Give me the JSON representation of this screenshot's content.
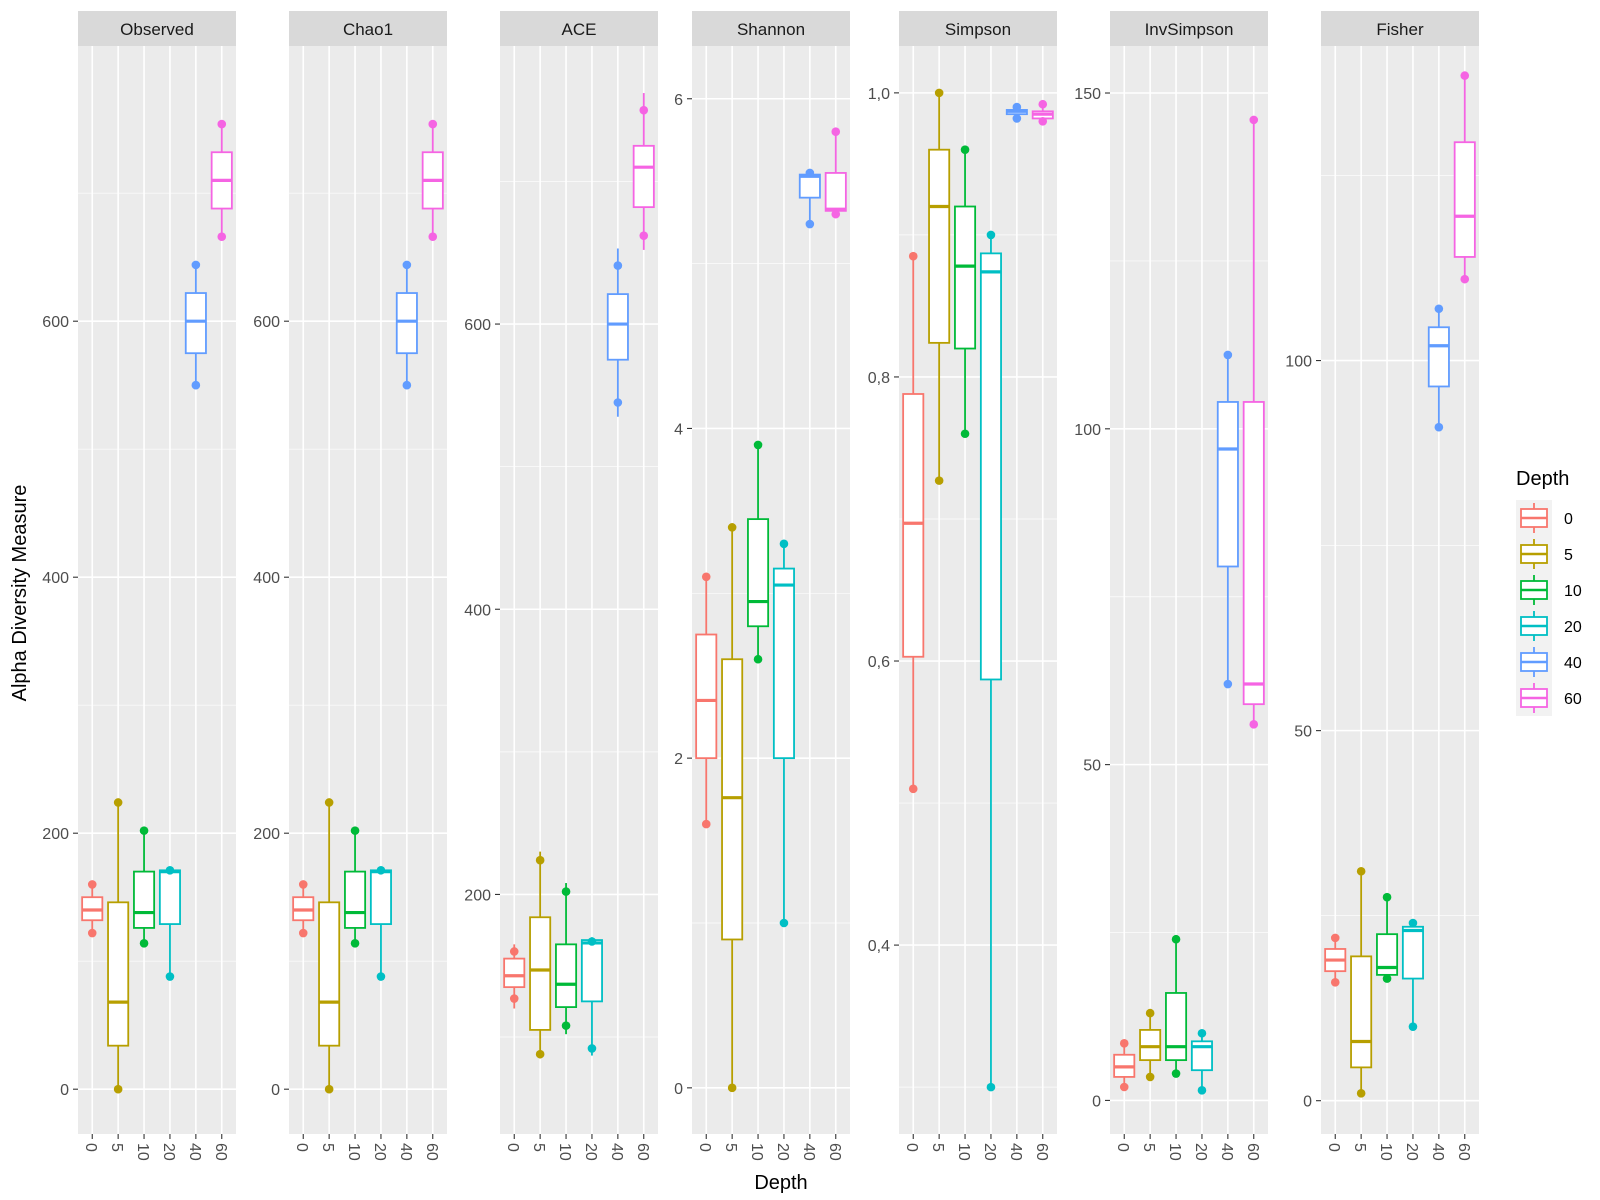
{
  "chart_data": {
    "type": "box",
    "xlabel": "Depth",
    "ylabel": "Alpha Diversity Measure",
    "legend": {
      "title": "Depth",
      "position": "right",
      "entries": [
        "0",
        "5",
        "10",
        "20",
        "40",
        "60"
      ]
    },
    "categories": [
      "0",
      "5",
      "10",
      "20",
      "40",
      "60"
    ],
    "colors": [
      "#F8766D",
      "#B79F00",
      "#00BA38",
      "#00BFC4",
      "#619CFF",
      "#F564E3"
    ],
    "panel_background": "#EBEBEB",
    "strip_background": "#D9D9D9",
    "grid": true,
    "panels": [
      {
        "title": "Observed",
        "ylim": [
          -35,
          815
        ],
        "yticks": [
          0,
          200,
          400,
          600
        ],
        "ytick_labels": [
          "0",
          "200",
          "400",
          "600"
        ],
        "boxes": [
          {
            "depth": "0",
            "whisker_low": 122,
            "q1": 132,
            "median": 140,
            "q3": 150,
            "whisker_high": 160,
            "points": [
              122,
              160
            ]
          },
          {
            "depth": "5",
            "whisker_low": 0,
            "q1": 34,
            "median": 68,
            "q3": 146,
            "whisker_high": 224,
            "points": [
              0,
              224
            ]
          },
          {
            "depth": "10",
            "whisker_low": 114,
            "q1": 126,
            "median": 138,
            "q3": 170,
            "whisker_high": 202,
            "points": [
              114,
              202
            ]
          },
          {
            "depth": "20",
            "whisker_low": 88,
            "q1": 129,
            "median": 170,
            "q3": 171,
            "whisker_high": 172,
            "points": [
              88,
              171
            ]
          },
          {
            "depth": "40",
            "whisker_low": 550,
            "q1": 575,
            "median": 600,
            "q3": 622,
            "whisker_high": 644,
            "points": [
              550,
              644
            ]
          },
          {
            "depth": "60",
            "whisker_low": 666,
            "q1": 688,
            "median": 710,
            "q3": 732,
            "whisker_high": 754,
            "points": [
              666,
              754
            ]
          }
        ]
      },
      {
        "title": "Chao1",
        "ylim": [
          -35,
          815
        ],
        "yticks": [
          0,
          200,
          400,
          600
        ],
        "ytick_labels": [
          "0",
          "200",
          "400",
          "600"
        ],
        "boxes": [
          {
            "depth": "0",
            "whisker_low": 122,
            "q1": 132,
            "median": 140,
            "q3": 150,
            "whisker_high": 160,
            "points": [
              122,
              160
            ]
          },
          {
            "depth": "5",
            "whisker_low": 0,
            "q1": 34,
            "median": 68,
            "q3": 146,
            "whisker_high": 224,
            "points": [
              0,
              224
            ]
          },
          {
            "depth": "10",
            "whisker_low": 114,
            "q1": 126,
            "median": 138,
            "q3": 170,
            "whisker_high": 202,
            "points": [
              114,
              202
            ]
          },
          {
            "depth": "20",
            "whisker_low": 88,
            "q1": 129,
            "median": 170,
            "q3": 171,
            "whisker_high": 172,
            "points": [
              88,
              171
            ]
          },
          {
            "depth": "40",
            "whisker_low": 550,
            "q1": 575,
            "median": 600,
            "q3": 622,
            "whisker_high": 644,
            "points": [
              550,
              644
            ]
          },
          {
            "depth": "60",
            "whisker_low": 666,
            "q1": 688,
            "median": 710,
            "q3": 732,
            "whisker_high": 754,
            "points": [
              666,
              754
            ]
          }
        ]
      },
      {
        "title": "ACE",
        "ylim": [
          32,
          795
        ],
        "yticks": [
          200,
          400,
          600
        ],
        "ytick_labels": [
          "200",
          "400",
          "600"
        ],
        "boxes": [
          {
            "depth": "0",
            "whisker_low": 120,
            "q1": 135,
            "median": 143,
            "q3": 155,
            "whisker_high": 165,
            "points": [
              127,
              160
            ]
          },
          {
            "depth": "5",
            "whisker_low": 85,
            "q1": 105,
            "median": 147,
            "q3": 184,
            "whisker_high": 230,
            "points": [
              88,
              224
            ]
          },
          {
            "depth": "10",
            "whisker_low": 102,
            "q1": 121,
            "median": 137,
            "q3": 165,
            "whisker_high": 208,
            "points": [
              108,
              202
            ]
          },
          {
            "depth": "20",
            "whisker_low": 87,
            "q1": 125,
            "median": 166,
            "q3": 168,
            "whisker_high": 170,
            "points": [
              92,
              167
            ]
          },
          {
            "depth": "40",
            "whisker_low": 535,
            "q1": 575,
            "median": 600,
            "q3": 621,
            "whisker_high": 653,
            "points": [
              545,
              641
            ]
          },
          {
            "depth": "60",
            "whisker_low": 652,
            "q1": 682,
            "median": 710,
            "q3": 725,
            "whisker_high": 762,
            "points": [
              662,
              750
            ]
          }
        ]
      },
      {
        "title": "Shannon",
        "ylim": [
          -0.28,
          6.32
        ],
        "yticks": [
          0,
          2,
          4,
          6
        ],
        "ytick_labels": [
          "0",
          "2",
          "4",
          "6"
        ],
        "boxes": [
          {
            "depth": "0",
            "whisker_low": 1.6,
            "q1": 2.0,
            "median": 2.35,
            "q3": 2.75,
            "whisker_high": 3.1,
            "points": [
              1.6,
              3.1
            ]
          },
          {
            "depth": "5",
            "whisker_low": 0,
            "q1": 0.9,
            "median": 1.76,
            "q3": 2.6,
            "whisker_high": 3.4,
            "points": [
              0,
              3.4
            ]
          },
          {
            "depth": "10",
            "whisker_low": 2.6,
            "q1": 2.8,
            "median": 2.95,
            "q3": 3.45,
            "whisker_high": 3.9,
            "points": [
              2.6,
              3.9
            ]
          },
          {
            "depth": "20",
            "whisker_low": 1.0,
            "q1": 2.0,
            "median": 3.05,
            "q3": 3.15,
            "whisker_high": 3.3,
            "points": [
              1.0,
              3.3
            ]
          },
          {
            "depth": "40",
            "whisker_low": 5.24,
            "q1": 5.4,
            "median": 5.53,
            "q3": 5.54,
            "whisker_high": 5.55,
            "points": [
              5.24,
              5.55
            ]
          },
          {
            "depth": "60",
            "whisker_low": 5.3,
            "q1": 5.32,
            "median": 5.33,
            "q3": 5.55,
            "whisker_high": 5.8,
            "points": [
              5.3,
              5.8
            ]
          }
        ]
      },
      {
        "title": "Simpson",
        "ylim": [
          0.267,
          1.033
        ],
        "yticks": [
          0.4,
          0.6,
          0.8,
          1.0
        ],
        "ytick_labels": [
          "0,4",
          "0,6",
          "0,8",
          "1,0"
        ],
        "boxes": [
          {
            "depth": "0",
            "whisker_low": 0.51,
            "q1": 0.603,
            "median": 0.697,
            "q3": 0.788,
            "whisker_high": 0.885,
            "points": [
              0.51,
              0.885
            ]
          },
          {
            "depth": "5",
            "whisker_low": 0.727,
            "q1": 0.824,
            "median": 0.92,
            "q3": 0.96,
            "whisker_high": 1.0,
            "points": [
              0.727,
              1.0
            ]
          },
          {
            "depth": "10",
            "whisker_low": 0.76,
            "q1": 0.82,
            "median": 0.878,
            "q3": 0.92,
            "whisker_high": 0.96,
            "points": [
              0.76,
              0.96
            ]
          },
          {
            "depth": "20",
            "whisker_low": 0.3,
            "q1": 0.587,
            "median": 0.874,
            "q3": 0.887,
            "whisker_high": 0.9,
            "points": [
              0.3,
              0.9
            ]
          },
          {
            "depth": "40",
            "whisker_low": 0.982,
            "q1": 0.985,
            "median": 0.987,
            "q3": 0.988,
            "whisker_high": 0.99,
            "points": [
              0.982,
              0.99
            ]
          },
          {
            "depth": "60",
            "whisker_low": 0.98,
            "q1": 0.982,
            "median": 0.985,
            "q3": 0.987,
            "whisker_high": 0.992,
            "points": [
              0.98,
              0.992
            ]
          }
        ]
      },
      {
        "title": "InvSimpson",
        "ylim": [
          -5,
          157
        ],
        "yticks": [
          0,
          50,
          100,
          150
        ],
        "ytick_labels": [
          "0",
          "50",
          "100",
          "150"
        ],
        "boxes": [
          {
            "depth": "0",
            "whisker_low": 2,
            "q1": 3.5,
            "median": 5,
            "q3": 6.8,
            "whisker_high": 8.5,
            "points": [
              2,
              8.5
            ]
          },
          {
            "depth": "5",
            "whisker_low": 3.5,
            "q1": 6,
            "median": 8,
            "q3": 10.5,
            "whisker_high": 13,
            "points": [
              3.5,
              13
            ]
          },
          {
            "depth": "10",
            "whisker_low": 4,
            "q1": 6,
            "median": 8,
            "q3": 16,
            "whisker_high": 24,
            "points": [
              4,
              24
            ]
          },
          {
            "depth": "20",
            "whisker_low": 1.5,
            "q1": 4.5,
            "median": 8,
            "q3": 8.8,
            "whisker_high": 10,
            "points": [
              1.5,
              10
            ]
          },
          {
            "depth": "40",
            "whisker_low": 62,
            "q1": 79.5,
            "median": 97,
            "q3": 104,
            "whisker_high": 111,
            "points": [
              62,
              111
            ]
          },
          {
            "depth": "60",
            "whisker_low": 56,
            "q1": 59,
            "median": 62,
            "q3": 104,
            "whisker_high": 146,
            "points": [
              56,
              146
            ]
          }
        ]
      },
      {
        "title": "Fisher",
        "ylim": [
          -4.5,
          142.5
        ],
        "yticks": [
          0,
          50,
          100
        ],
        "ytick_labels": [
          "0",
          "50",
          "100"
        ],
        "boxes": [
          {
            "depth": "0",
            "whisker_low": 16,
            "q1": 17.5,
            "median": 19,
            "q3": 20.5,
            "whisker_high": 22,
            "points": [
              16,
              22
            ]
          },
          {
            "depth": "5",
            "whisker_low": 1,
            "q1": 4.5,
            "median": 8,
            "q3": 19.5,
            "whisker_high": 31,
            "points": [
              1,
              31
            ]
          },
          {
            "depth": "10",
            "whisker_low": 16.5,
            "q1": 17,
            "median": 18,
            "q3": 22.5,
            "whisker_high": 27.5,
            "points": [
              16.5,
              27.5
            ]
          },
          {
            "depth": "20",
            "whisker_low": 10,
            "q1": 16.5,
            "median": 23,
            "q3": 23.5,
            "whisker_high": 24,
            "points": [
              10,
              24
            ]
          },
          {
            "depth": "40",
            "whisker_low": 91,
            "q1": 96.5,
            "median": 102,
            "q3": 104.5,
            "whisker_high": 107,
            "points": [
              91,
              107
            ]
          },
          {
            "depth": "60",
            "whisker_low": 111,
            "q1": 114,
            "median": 119.5,
            "q3": 129.5,
            "whisker_high": 138.5,
            "points": [
              111,
              138.5
            ]
          }
        ]
      }
    ]
  }
}
